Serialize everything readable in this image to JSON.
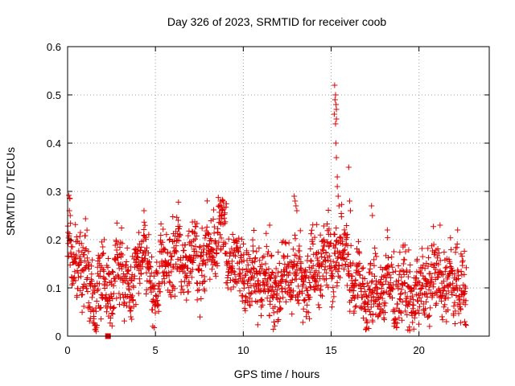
{
  "chart_data": {
    "type": "scatter",
    "title": "Day 326 of 2023, SRMTID for receiver coob",
    "xlabel": "GPS time / hours",
    "ylabel": "SRMTID / TECUs",
    "xlim": [
      0,
      24
    ],
    "ylim": [
      0,
      0.6
    ],
    "x_ticks": [
      0,
      5,
      10,
      15,
      20
    ],
    "x_tick_labels": [
      "0",
      "5",
      "10",
      "15",
      "20"
    ],
    "y_ticks": [
      0,
      0.1,
      0.2,
      0.3,
      0.4,
      0.5,
      0.6
    ],
    "y_tick_labels": [
      "0",
      "0.1",
      "0.2",
      "0.3",
      "0.4",
      "0.5",
      "0.6"
    ],
    "grid": true,
    "marker": "plus",
    "color": "#e00000",
    "series": [
      {
        "name": "SRMTID",
        "profile": [
          [
            0.0,
            0.17
          ],
          [
            0.1,
            0.21
          ],
          [
            0.3,
            0.13
          ],
          [
            0.5,
            0.15
          ],
          [
            0.7,
            0.18
          ],
          [
            0.9,
            0.14
          ],
          [
            1.1,
            0.12
          ],
          [
            1.3,
            0.09
          ],
          [
            1.6,
            0.08
          ],
          [
            1.9,
            0.11
          ],
          [
            2.2,
            0.12
          ],
          [
            2.5,
            0.1
          ],
          [
            2.8,
            0.13
          ],
          [
            3.1,
            0.15
          ],
          [
            3.4,
            0.11
          ],
          [
            3.6,
            0.07
          ],
          [
            3.8,
            0.12
          ],
          [
            4.0,
            0.17
          ],
          [
            4.3,
            0.19
          ],
          [
            4.5,
            0.16
          ],
          [
            4.7,
            0.1
          ],
          [
            5.0,
            0.09
          ],
          [
            5.3,
            0.12
          ],
          [
            5.6,
            0.16
          ],
          [
            6.0,
            0.15
          ],
          [
            6.4,
            0.18
          ],
          [
            6.8,
            0.14
          ],
          [
            7.2,
            0.17
          ],
          [
            7.6,
            0.15
          ],
          [
            8.0,
            0.18
          ],
          [
            8.4,
            0.2
          ],
          [
            8.8,
            0.22
          ],
          [
            9.2,
            0.17
          ],
          [
            9.6,
            0.15
          ],
          [
            10.0,
            0.13
          ],
          [
            10.4,
            0.12
          ],
          [
            10.8,
            0.11
          ],
          [
            11.2,
            0.13
          ],
          [
            11.6,
            0.1
          ],
          [
            12.0,
            0.09
          ],
          [
            12.4,
            0.12
          ],
          [
            12.8,
            0.15
          ],
          [
            13.2,
            0.11
          ],
          [
            13.6,
            0.12
          ],
          [
            14.0,
            0.14
          ],
          [
            14.4,
            0.16
          ],
          [
            14.8,
            0.17
          ],
          [
            15.1,
            0.13
          ],
          [
            15.3,
            0.19
          ],
          [
            15.6,
            0.16
          ],
          [
            15.9,
            0.18
          ],
          [
            16.2,
            0.12
          ],
          [
            16.6,
            0.1
          ],
          [
            17.0,
            0.09
          ],
          [
            17.4,
            0.07
          ],
          [
            17.8,
            0.11
          ],
          [
            18.2,
            0.1
          ],
          [
            18.6,
            0.09
          ],
          [
            19.0,
            0.1
          ],
          [
            19.4,
            0.09
          ],
          [
            19.8,
            0.08
          ],
          [
            20.2,
            0.1
          ],
          [
            20.6,
            0.11
          ],
          [
            21.0,
            0.12
          ],
          [
            21.4,
            0.11
          ],
          [
            21.8,
            0.1
          ],
          [
            22.2,
            0.12
          ],
          [
            22.5,
            0.09
          ],
          [
            22.7,
            0.07
          ]
        ],
        "x_range": [
          0,
          22.7
        ],
        "sample_step_hours": 0.012,
        "spread": 0.035,
        "seed": 7,
        "extra_points": [
          [
            15.2,
            0.52
          ],
          [
            15.22,
            0.49
          ],
          [
            15.25,
            0.5
          ],
          [
            15.28,
            0.48
          ],
          [
            15.3,
            0.47
          ],
          [
            15.18,
            0.46
          ],
          [
            15.3,
            0.45
          ],
          [
            15.25,
            0.44
          ],
          [
            15.27,
            0.4
          ],
          [
            15.3,
            0.37
          ],
          [
            15.35,
            0.33
          ],
          [
            15.35,
            0.31
          ],
          [
            15.4,
            0.29
          ],
          [
            15.45,
            0.27
          ],
          [
            16.0,
            0.35
          ],
          [
            16.05,
            0.28
          ],
          [
            16.1,
            0.26
          ],
          [
            12.9,
            0.29
          ],
          [
            12.95,
            0.28
          ],
          [
            13.0,
            0.27
          ],
          [
            13.05,
            0.26
          ],
          [
            8.7,
            0.28
          ],
          [
            8.75,
            0.27
          ],
          [
            8.8,
            0.26
          ],
          [
            4.35,
            0.26
          ],
          [
            6.3,
            0.24
          ],
          [
            17.3,
            0.27
          ],
          [
            17.35,
            0.25
          ],
          [
            11.5,
            0.23
          ],
          [
            18.2,
            0.22
          ],
          [
            21.2,
            0.23
          ],
          [
            22.2,
            0.22
          ],
          [
            0.1,
            0.26
          ],
          [
            0.15,
            0.25
          ],
          [
            17.0,
            0.015
          ],
          [
            17.05,
            0.03
          ],
          [
            22.6,
            0.03
          ],
          [
            3.6,
            0.04
          ],
          [
            3.65,
            0.035
          ]
        ]
      },
      {
        "name": "marker-square",
        "marker": "square",
        "points": [
          [
            2.3,
            0.0
          ]
        ]
      }
    ]
  }
}
